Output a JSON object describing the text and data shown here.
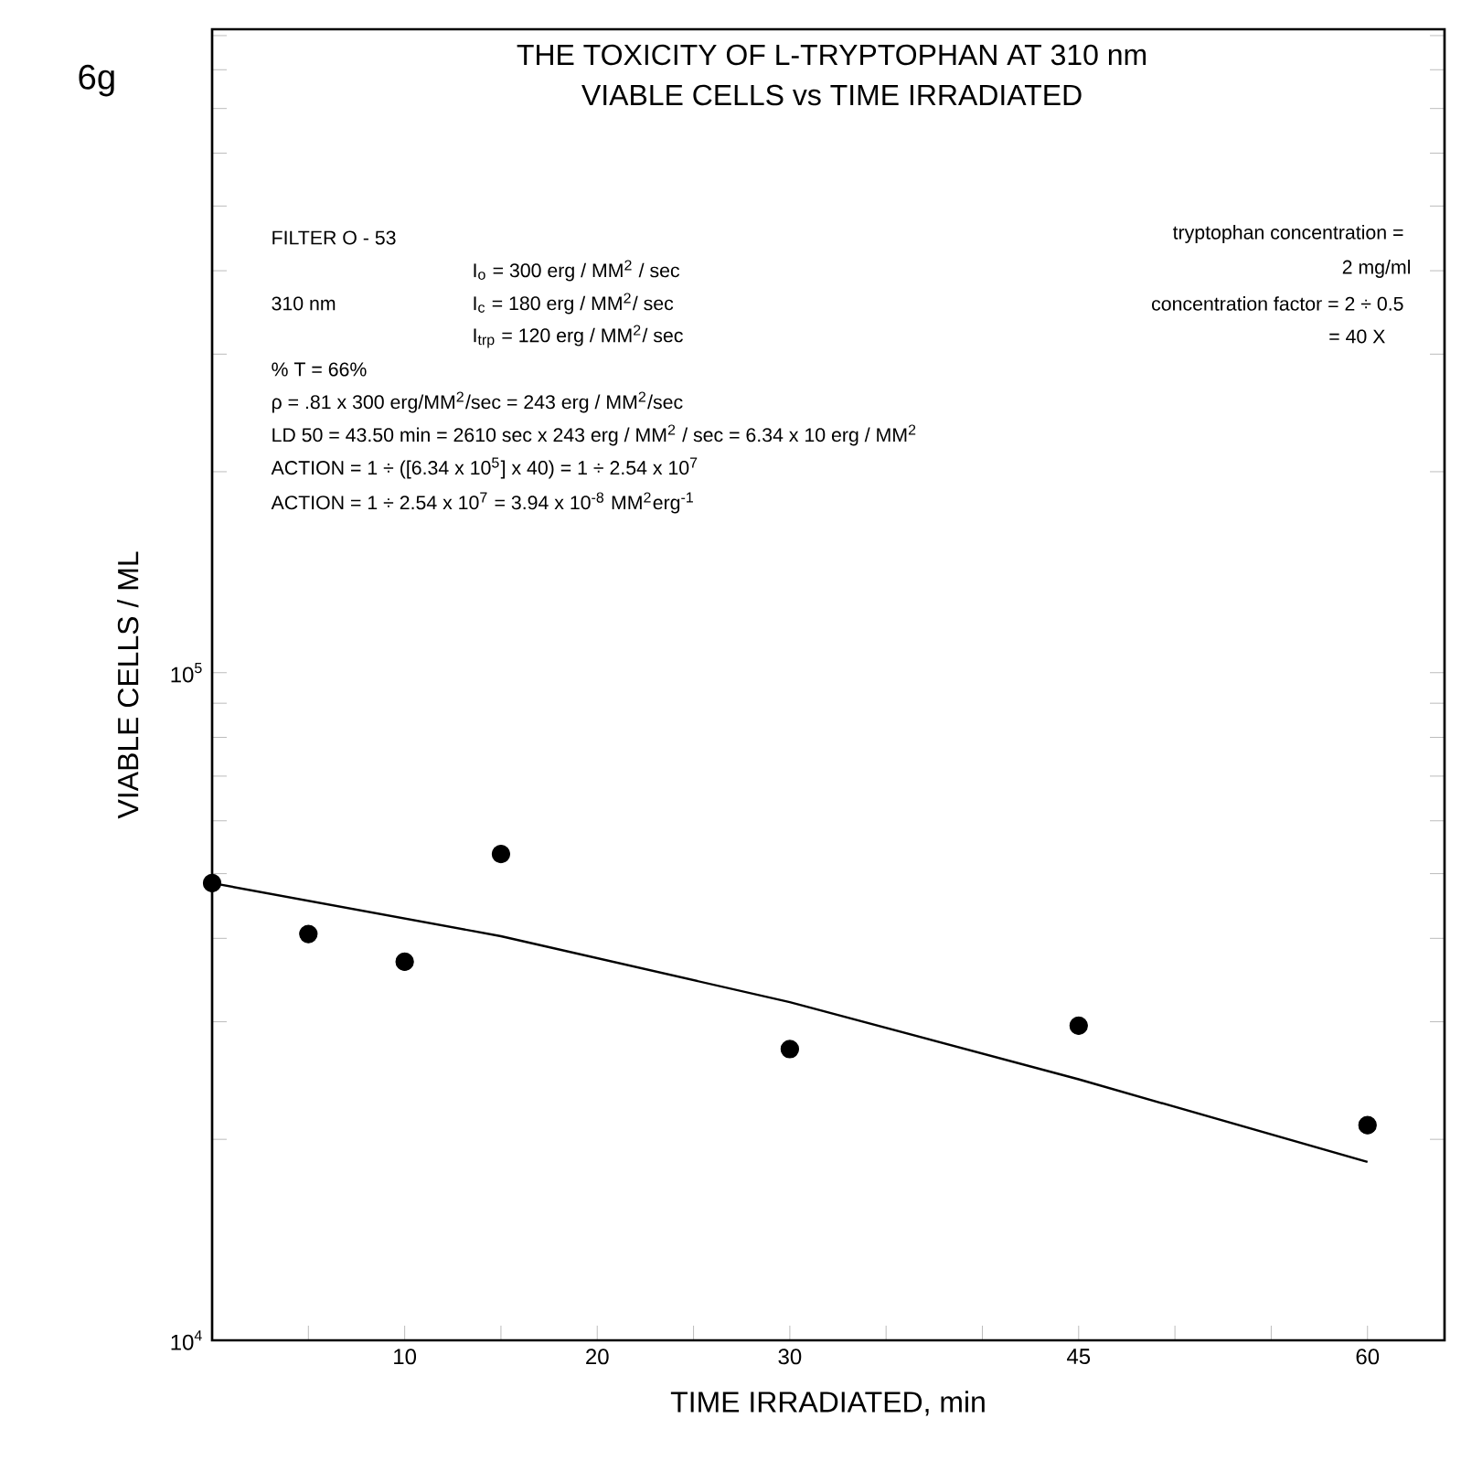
{
  "chart_data": {
    "type": "scatter",
    "title": "THE TOXICITY OF L-TRYPTOPHAN AT 310 nm",
    "subtitle": "VIABLE CELLS vs TIME IRRADIATED",
    "xlabel": "TIME  IRRADIATED,  min",
    "ylabel": "VIABLE  CELLS / ML",
    "series": [
      {
        "color": "#000000",
        "x": [
          0,
          5,
          10,
          15,
          30,
          45,
          60
        ],
        "values": [
          48400,
          40600,
          36900,
          53500,
          27300,
          29600,
          21000
        ]
      },
      {
        "type": "line",
        "color": "#000000",
        "line_style": "solid",
        "marker": "none",
        "x": [
          0,
          15,
          30,
          45,
          60
        ],
        "values": [
          48400,
          40300,
          32100,
          24600,
          18500
        ]
      }
    ],
    "log": "y",
    "xlim": [
      0,
      64
    ],
    "ylim": [
      10000,
      920000
    ],
    "xticks": [
      {
        "value": 5,
        "label": null
      },
      10,
      {
        "value": 15,
        "label": null
      },
      20,
      {
        "value": 25,
        "label": null
      },
      30,
      {
        "value": 35,
        "label": null
      },
      {
        "value": 40,
        "label": null
      },
      45,
      {
        "value": 50,
        "label": null
      },
      {
        "value": 55,
        "label": null
      },
      60
    ],
    "yticks": [
      {
        "value": 10000,
        "label": "10$^{4}$"
      },
      {
        "value": 20000,
        "label": null
      },
      {
        "value": 30000,
        "label": null
      },
      {
        "value": 40000,
        "label": null
      },
      {
        "value": 50000,
        "label": null
      },
      {
        "value": 60000,
        "label": null
      },
      {
        "value": 70000,
        "label": null
      },
      {
        "value": 80000,
        "label": null
      },
      {
        "value": 90000,
        "label": null
      },
      {
        "value": 100000,
        "label": "10$^{5}$"
      },
      {
        "value": 200000,
        "label": null
      },
      {
        "value": 300000,
        "label": null
      },
      {
        "value": 400000,
        "label": null
      },
      {
        "value": 500000,
        "label": null
      },
      {
        "value": 600000,
        "label": null
      },
      {
        "value": 700000,
        "label": null
      },
      {
        "value": 800000,
        "label": null
      },
      {
        "value": 900000,
        "label": null
      }
    ],
    "grid": false,
    "annotations": [
      "6g",
      "FILTER  O - 53",
      "I$_{o}$ = 300 erg / MM$^{2}$ / sec",
      "310 nm",
      "I$_{c}$ = 180 erg / MM$^{2}$/ sec",
      "I$_{trp}$ = 120 erg / MM$^{2}$/ sec",
      "% T = 66%",
      "ρ = .81 x 300 erg/MM$^{2}$/sec = 243 erg / MM$^{2}$/sec",
      "LD 50 = 43.50 min = 2610 sec x 243 erg / MM$^{2}$ / sec = 6.34 x 10 erg / MM$^{2}$",
      "ACTION = 1 ÷ ([6.34 x 10$^{5}$] x 40) = 1 ÷ 2.54 x 10$^{7}$",
      "ACTION = 1 ÷ 2.54 x 10$^{7}$ = 3.94 x 10$^{-8}$ MM$^{2}$erg$^{-1}$",
      "tryptophan concentration =",
      "2 mg/ml",
      "concentration factor = 2 ÷ 0.5",
      "= 40 X"
    ]
  }
}
